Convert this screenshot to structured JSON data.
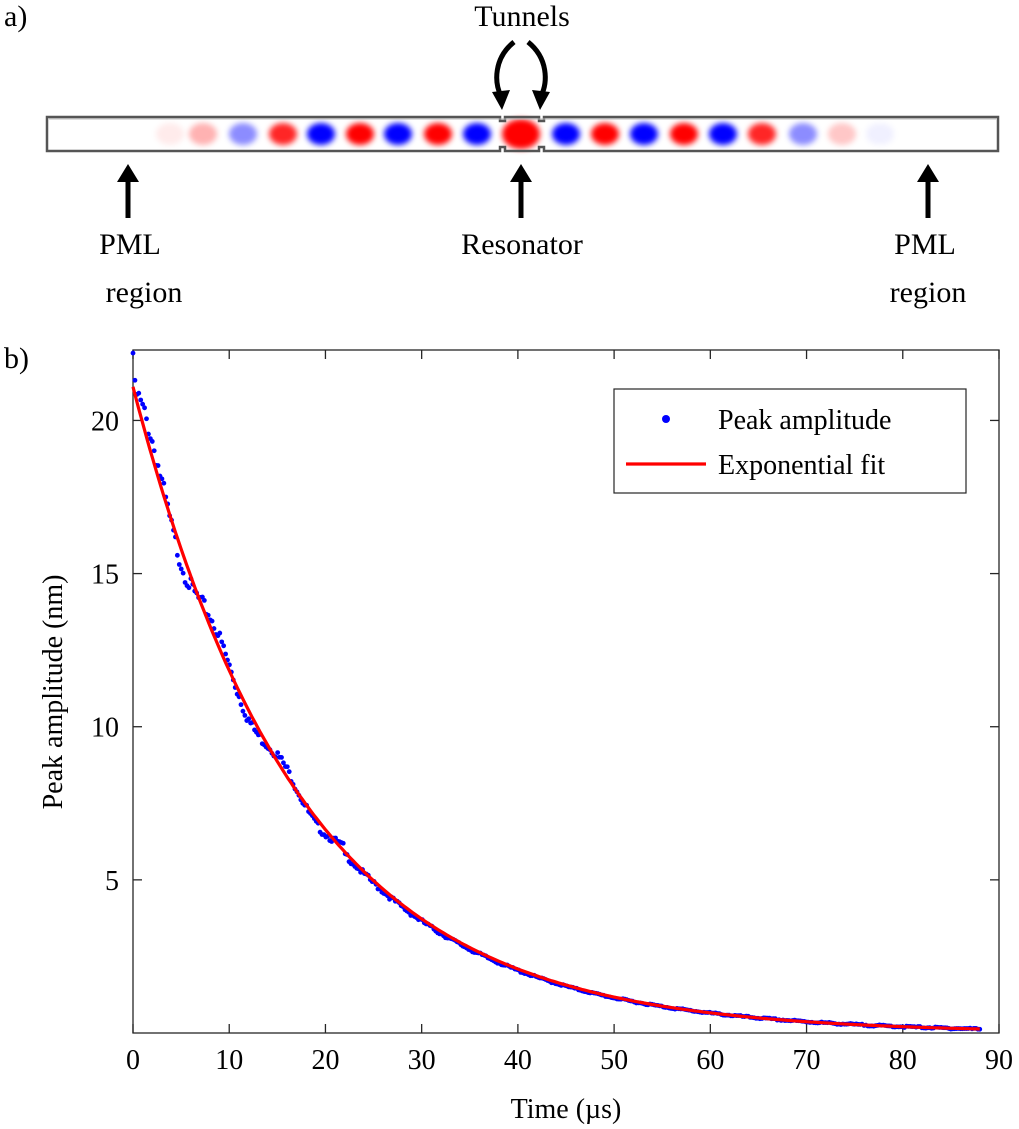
{
  "panel_a": {
    "label": "a)",
    "tunnels_label": "Tunnels",
    "resonator_label": "Resonator",
    "pml_left_line1": "PML",
    "pml_left_line2": "region",
    "pml_right_line1": "PML",
    "pml_right_line2": "region",
    "colors": {
      "positive": "#ff0000",
      "negative": "#0000ff",
      "frame": "#555555"
    }
  },
  "panel_b": {
    "label": "b)"
  },
  "chart_data": {
    "type": "scatter",
    "xlabel": "Time (µs)",
    "ylabel": "Peak amplitude (nm)",
    "xlim": [
      0,
      90
    ],
    "ylim": [
      0,
      22.3
    ],
    "xticks": [
      "0",
      "10",
      "20",
      "30",
      "40",
      "50",
      "60",
      "70",
      "80",
      "90"
    ],
    "yticks": [
      "5",
      "10",
      "15",
      "20"
    ],
    "legend_position": "top-right",
    "grid": false,
    "series": [
      {
        "name": "Peak amplitude",
        "kind": "points",
        "color": "#0000ff",
        "x_range": [
          0,
          88
        ],
        "count": 440,
        "approx_values": [
          [
            0,
            22.2
          ],
          [
            5,
            16.8
          ],
          [
            10,
            12.9
          ],
          [
            20,
            7.3
          ],
          [
            30,
            4.1
          ],
          [
            40,
            2.3
          ],
          [
            50,
            1.3
          ],
          [
            60,
            0.75
          ],
          [
            70,
            0.48
          ],
          [
            80,
            0.35
          ],
          [
            88,
            0.3
          ]
        ]
      },
      {
        "name": "Exponential fit",
        "kind": "line",
        "color": "#ff0000",
        "model": "A*exp(-t/tau)",
        "A": 21.1,
        "tau": 17.3,
        "x_range": [
          0,
          88
        ]
      }
    ]
  }
}
